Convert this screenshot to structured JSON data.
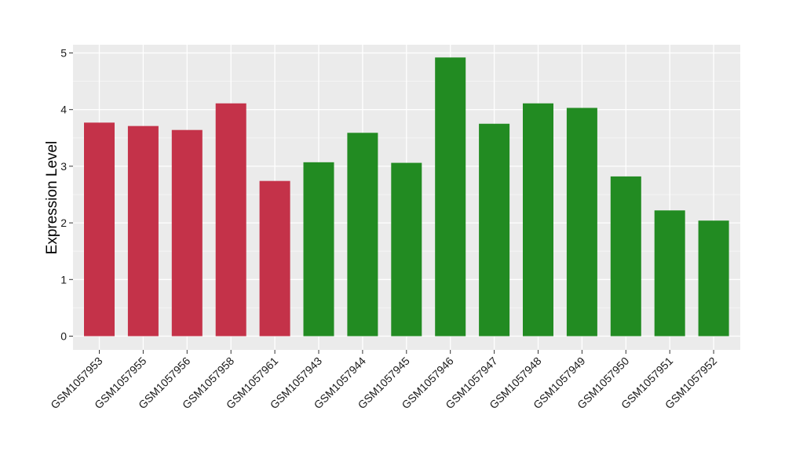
{
  "chart_data": {
    "type": "bar",
    "ylabel": "Expression Level",
    "xlabel": "",
    "title": "",
    "ylim": [
      0,
      5
    ],
    "yticks": [
      0,
      1,
      2,
      3,
      4,
      5
    ],
    "grid": true,
    "categories": [
      "GSM1057953",
      "GSM1057955",
      "GSM1057956",
      "GSM1057958",
      "GSM1057961",
      "GSM1057943",
      "GSM1057944",
      "GSM1057945",
      "GSM1057946",
      "GSM1057947",
      "GSM1057948",
      "GSM1057949",
      "GSM1057950",
      "GSM1057951",
      "GSM1057952"
    ],
    "values": [
      3.77,
      3.71,
      3.64,
      4.11,
      2.74,
      3.07,
      3.59,
      3.06,
      4.92,
      3.75,
      4.11,
      4.03,
      2.82,
      2.22,
      2.04
    ],
    "bar_colors": [
      "#c43249",
      "#c43249",
      "#c43249",
      "#c43249",
      "#c43249",
      "#228b22",
      "#228b22",
      "#228b22",
      "#228b22",
      "#228b22",
      "#228b22",
      "#228b22",
      "#228b22",
      "#228b22",
      "#228b22"
    ]
  }
}
